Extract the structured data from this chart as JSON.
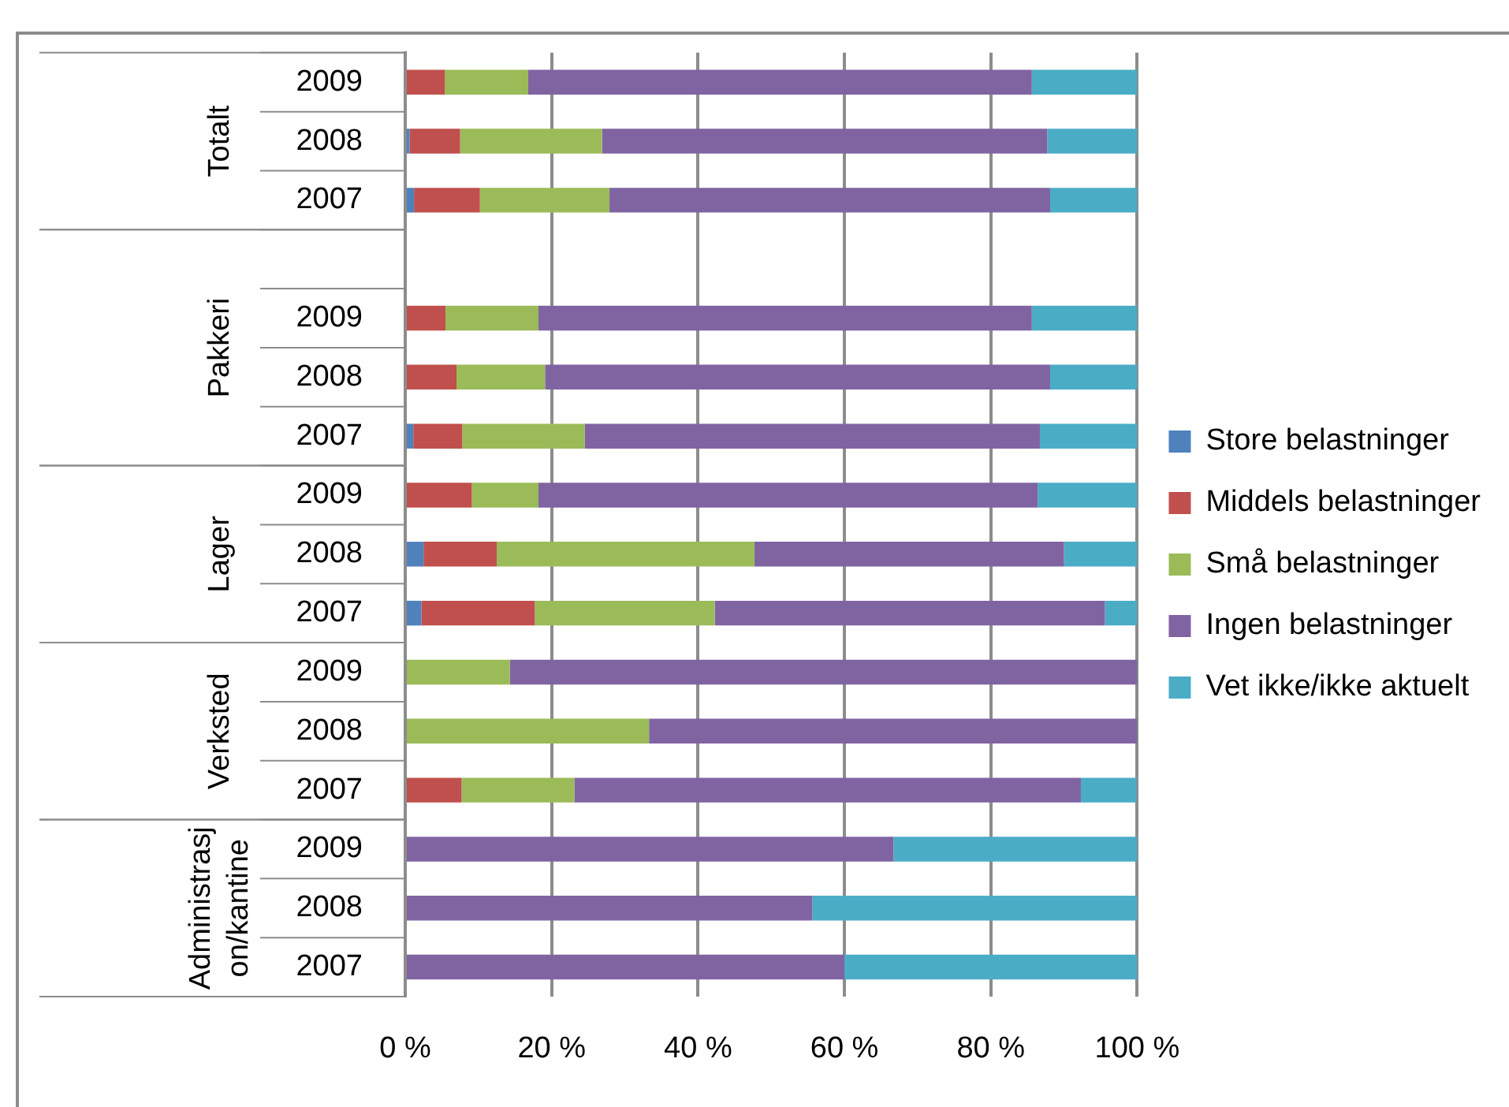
{
  "chart_data": {
    "type": "bar",
    "orientation": "horizontal",
    "stacked": true,
    "categories": [
      "2009",
      "2008",
      "2007",
      null,
      "2009",
      "2008",
      "2007",
      "2009",
      "2008",
      "2007",
      "2009",
      "2008",
      "2007",
      "2009",
      "2008",
      "2007"
    ],
    "series": [
      {
        "name": "Store belastninger",
        "color": "#4f81bd",
        "values": [
          0,
          0.6,
          1.2,
          null,
          0,
          0,
          1.1,
          0,
          2.5,
          2.2,
          0,
          0,
          0,
          0,
          0,
          0
        ]
      },
      {
        "name": "Middels belastninger",
        "color": "#c0504d",
        "values": [
          5.4,
          6.9,
          9.0,
          null,
          5.5,
          7.0,
          6.7,
          9.1,
          10.0,
          15.5,
          0,
          0,
          7.7,
          0,
          0,
          0
        ]
      },
      {
        "name": "Små belastninger",
        "color": "#9bbb59",
        "values": [
          11.4,
          19.4,
          17.7,
          null,
          12.7,
          12.1,
          16.7,
          9.1,
          35.2,
          24.6,
          14.3,
          33.3,
          15.4,
          0,
          0,
          0
        ]
      },
      {
        "name": "Ingen belastninger",
        "color": "#8064a2",
        "values": [
          68.8,
          60.8,
          60.2,
          null,
          67.4,
          69.0,
          62.2,
          68.2,
          42.3,
          53.3,
          85.7,
          66.7,
          69.2,
          66.7,
          55.6,
          60
        ]
      },
      {
        "name": "Vet ikke/ikke aktuelt",
        "color": "#4bacc6",
        "values": [
          14.4,
          12.3,
          11.9,
          null,
          14.4,
          11.9,
          13.3,
          13.6,
          10.0,
          4.4,
          0,
          0,
          7.6,
          33.3,
          44.4,
          40
        ]
      }
    ],
    "xlim": [
      0,
      100
    ],
    "xticks": [
      {
        "value": 0,
        "label": "0 %"
      },
      {
        "value": 20,
        "label": "20 %"
      },
      {
        "value": 40,
        "label": "40 %"
      },
      {
        "value": 60,
        "label": "60 %"
      },
      {
        "value": 80,
        "label": "80 %"
      },
      {
        "value": 100,
        "label": "100 %"
      }
    ],
    "grid": "x",
    "legend": "right",
    "annotations": [
      "Totalt",
      "Pakkeri",
      "Lager",
      "Verksted",
      "Administrasjon/kantine"
    ]
  }
}
